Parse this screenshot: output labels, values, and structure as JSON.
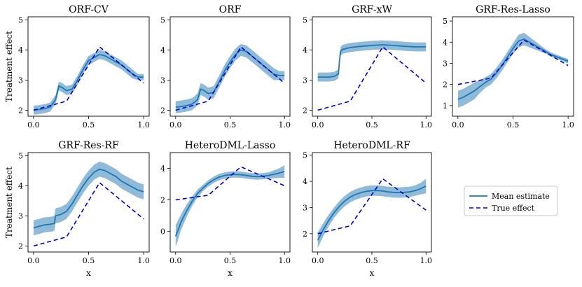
{
  "legend": {
    "mean_label": "Mean estimate",
    "true_label": "True effect",
    "placement": "right-middle"
  },
  "colors": {
    "mean": "#1f77b4",
    "band": "#1f77b4",
    "truth": "#0000cc"
  },
  "chart_data": [
    {
      "type": "line",
      "title": "ORF-CV",
      "xlabel": "",
      "ylabel": "Treatment effect",
      "xlim": [
        -0.05,
        1.05
      ],
      "ylim": [
        1.8,
        5.1
      ],
      "xticks": [
        0.0,
        0.5,
        1.0
      ],
      "yticks": [
        2,
        3,
        4,
        5
      ],
      "series": [
        {
          "name": "Mean estimate",
          "x": [
            0,
            0.05,
            0.1,
            0.15,
            0.2,
            0.23,
            0.26,
            0.3,
            0.35,
            0.4,
            0.45,
            0.5,
            0.55,
            0.6,
            0.65,
            0.7,
            0.75,
            0.8,
            0.85,
            0.9,
            0.95,
            1.0
          ],
          "y": [
            2.0,
            2.02,
            2.05,
            2.1,
            2.35,
            2.8,
            2.75,
            2.65,
            2.7,
            3.0,
            3.35,
            3.65,
            3.75,
            3.85,
            3.8,
            3.7,
            3.6,
            3.5,
            3.35,
            3.2,
            3.1,
            3.1
          ],
          "band": [
            0.15,
            0.15,
            0.15,
            0.15,
            0.15,
            0.15,
            0.15,
            0.15,
            0.15,
            0.15,
            0.15,
            0.15,
            0.15,
            0.15,
            0.15,
            0.15,
            0.15,
            0.15,
            0.15,
            0.15,
            0.1,
            0.1
          ]
        },
        {
          "name": "True effect",
          "x": [
            0,
            0.3,
            0.6,
            1.0
          ],
          "y": [
            2,
            2.3,
            4.1,
            2.9
          ]
        }
      ]
    },
    {
      "type": "line",
      "title": "ORF",
      "xlabel": "",
      "ylabel": "",
      "xlim": [
        -0.05,
        1.05
      ],
      "ylim": [
        1.8,
        5.1
      ],
      "xticks": [
        0.0,
        0.5,
        1.0
      ],
      "yticks": [
        2,
        3,
        4,
        5
      ],
      "series": [
        {
          "name": "Mean estimate",
          "x": [
            0,
            0.05,
            0.1,
            0.15,
            0.2,
            0.23,
            0.26,
            0.3,
            0.35,
            0.4,
            0.45,
            0.5,
            0.55,
            0.6,
            0.65,
            0.7,
            0.75,
            0.8,
            0.85,
            0.9,
            0.95,
            1.0
          ],
          "y": [
            2.1,
            2.12,
            2.15,
            2.2,
            2.35,
            2.7,
            2.65,
            2.55,
            2.6,
            2.95,
            3.3,
            3.6,
            3.85,
            4.0,
            3.95,
            3.8,
            3.65,
            3.5,
            3.35,
            3.2,
            3.15,
            3.15
          ],
          "band": [
            0.2,
            0.2,
            0.2,
            0.2,
            0.2,
            0.2,
            0.2,
            0.2,
            0.2,
            0.2,
            0.2,
            0.2,
            0.2,
            0.2,
            0.2,
            0.2,
            0.2,
            0.2,
            0.2,
            0.2,
            0.15,
            0.15
          ]
        },
        {
          "name": "True effect",
          "x": [
            0,
            0.3,
            0.6,
            1.0
          ],
          "y": [
            2,
            2.3,
            4.1,
            2.9
          ]
        }
      ]
    },
    {
      "type": "line",
      "title": "GRF-xW",
      "xlabel": "",
      "ylabel": "",
      "xlim": [
        -0.05,
        1.05
      ],
      "ylim": [
        1.8,
        5.1
      ],
      "xticks": [
        0.0,
        0.5,
        1.0
      ],
      "yticks": [
        2,
        3,
        4,
        5
      ],
      "series": [
        {
          "name": "Mean estimate",
          "x": [
            0,
            0.05,
            0.1,
            0.15,
            0.19,
            0.2,
            0.21,
            0.23,
            0.3,
            0.4,
            0.5,
            0.6,
            0.7,
            0.8,
            0.9,
            1.0
          ],
          "y": [
            3.1,
            3.1,
            3.1,
            3.12,
            3.2,
            3.6,
            3.95,
            4.02,
            4.08,
            4.12,
            4.15,
            4.17,
            4.15,
            4.12,
            4.1,
            4.1
          ],
          "band": [
            0.15,
            0.15,
            0.15,
            0.15,
            0.15,
            0.15,
            0.15,
            0.15,
            0.15,
            0.15,
            0.15,
            0.15,
            0.15,
            0.15,
            0.15,
            0.15
          ]
        },
        {
          "name": "True effect",
          "x": [
            0,
            0.3,
            0.6,
            1.0
          ],
          "y": [
            2,
            2.3,
            4.1,
            2.9
          ]
        }
      ]
    },
    {
      "type": "line",
      "title": "GRF-Res-Lasso",
      "xlabel": "",
      "ylabel": "",
      "xlim": [
        -0.05,
        1.05
      ],
      "ylim": [
        0.5,
        5.2
      ],
      "xticks": [
        0.0,
        0.5,
        1.0
      ],
      "yticks": [
        1,
        2,
        3,
        4,
        5
      ],
      "series": [
        {
          "name": "Mean estimate",
          "x": [
            0,
            0.05,
            0.1,
            0.15,
            0.2,
            0.25,
            0.3,
            0.35,
            0.4,
            0.45,
            0.5,
            0.55,
            0.6,
            0.65,
            0.7,
            0.75,
            0.8,
            0.85,
            0.9,
            0.95,
            1.0
          ],
          "y": [
            1.3,
            1.4,
            1.55,
            1.7,
            1.9,
            2.1,
            2.25,
            2.55,
            2.9,
            3.3,
            3.7,
            4.05,
            4.15,
            4.0,
            3.85,
            3.7,
            3.55,
            3.4,
            3.3,
            3.2,
            3.1
          ],
          "band": [
            0.4,
            0.4,
            0.4,
            0.4,
            0.3,
            0.25,
            0.25,
            0.25,
            0.25,
            0.25,
            0.25,
            0.3,
            0.3,
            0.25,
            0.2,
            0.15,
            0.1,
            0.1,
            0.1,
            0.1,
            0.1
          ]
        },
        {
          "name": "True effect",
          "x": [
            0,
            0.3,
            0.6,
            1.0
          ],
          "y": [
            2,
            2.3,
            4.1,
            2.9
          ]
        }
      ]
    },
    {
      "type": "line",
      "title": "GRF-Res-RF",
      "xlabel": "x",
      "ylabel": "Treatment effect",
      "xlim": [
        -0.05,
        1.05
      ],
      "ylim": [
        1.8,
        5.1
      ],
      "xticks": [
        0.0,
        0.5,
        1.0
      ],
      "yticks": [
        2,
        3,
        4,
        5
      ],
      "series": [
        {
          "name": "Mean estimate",
          "x": [
            0,
            0.05,
            0.1,
            0.15,
            0.19,
            0.2,
            0.25,
            0.3,
            0.35,
            0.4,
            0.45,
            0.5,
            0.55,
            0.6,
            0.65,
            0.7,
            0.75,
            0.8,
            0.85,
            0.9,
            0.95,
            1.0
          ],
          "y": [
            2.6,
            2.65,
            2.7,
            2.72,
            2.75,
            3.0,
            3.05,
            3.15,
            3.4,
            3.7,
            4.0,
            4.25,
            4.45,
            4.55,
            4.5,
            4.4,
            4.3,
            4.15,
            4.05,
            3.95,
            3.85,
            3.8
          ],
          "band": [
            0.25,
            0.25,
            0.25,
            0.25,
            0.25,
            0.25,
            0.25,
            0.25,
            0.25,
            0.25,
            0.25,
            0.25,
            0.25,
            0.25,
            0.25,
            0.25,
            0.25,
            0.25,
            0.25,
            0.25,
            0.25,
            0.25
          ]
        },
        {
          "name": "True effect",
          "x": [
            0,
            0.3,
            0.6,
            1.0
          ],
          "y": [
            2,
            2.3,
            4.1,
            2.9
          ]
        }
      ]
    },
    {
      "type": "line",
      "title": "HeteroDML-Lasso",
      "xlabel": "x",
      "ylabel": "",
      "xlim": [
        -0.05,
        1.05
      ],
      "ylim": [
        -1.3,
        5.0
      ],
      "xticks": [
        0.0,
        0.5,
        1.0
      ],
      "yticks": [
        0,
        2,
        4
      ],
      "series": [
        {
          "name": "Mean estimate",
          "x": [
            0,
            0.05,
            0.1,
            0.15,
            0.2,
            0.25,
            0.3,
            0.35,
            0.4,
            0.45,
            0.5,
            0.55,
            0.6,
            0.65,
            0.7,
            0.75,
            0.8,
            0.85,
            0.9,
            0.95,
            1.0
          ],
          "y": [
            -0.3,
            0.6,
            1.3,
            1.9,
            2.4,
            2.75,
            3.05,
            3.28,
            3.45,
            3.55,
            3.6,
            3.62,
            3.6,
            3.55,
            3.5,
            3.48,
            3.5,
            3.55,
            3.62,
            3.7,
            3.8
          ],
          "band": [
            0.7,
            0.5,
            0.4,
            0.3,
            0.25,
            0.2,
            0.2,
            0.2,
            0.2,
            0.2,
            0.2,
            0.2,
            0.2,
            0.2,
            0.2,
            0.2,
            0.2,
            0.2,
            0.25,
            0.3,
            0.4
          ]
        },
        {
          "name": "True effect",
          "x": [
            0,
            0.3,
            0.6,
            1.0
          ],
          "y": [
            2,
            2.3,
            4.1,
            2.9
          ]
        }
      ]
    },
    {
      "type": "line",
      "title": "HeteroDML-RF",
      "xlabel": "x",
      "ylabel": "",
      "xlim": [
        -0.05,
        1.05
      ],
      "ylim": [
        1.3,
        5.1
      ],
      "xticks": [
        0.0,
        0.5,
        1.0
      ],
      "yticks": [
        2,
        3,
        4,
        5
      ],
      "series": [
        {
          "name": "Mean estimate",
          "x": [
            0,
            0.05,
            0.1,
            0.15,
            0.2,
            0.25,
            0.3,
            0.35,
            0.4,
            0.45,
            0.5,
            0.55,
            0.6,
            0.65,
            0.7,
            0.75,
            0.8,
            0.85,
            0.9,
            0.95,
            1.0
          ],
          "y": [
            1.75,
            2.15,
            2.5,
            2.8,
            3.05,
            3.25,
            3.4,
            3.5,
            3.57,
            3.62,
            3.65,
            3.65,
            3.63,
            3.6,
            3.58,
            3.57,
            3.58,
            3.6,
            3.65,
            3.72,
            3.82
          ],
          "band": [
            0.3,
            0.25,
            0.22,
            0.2,
            0.2,
            0.2,
            0.2,
            0.2,
            0.2,
            0.2,
            0.2,
            0.2,
            0.2,
            0.2,
            0.2,
            0.2,
            0.2,
            0.2,
            0.2,
            0.22,
            0.28
          ]
        },
        {
          "name": "True effect",
          "x": [
            0,
            0.3,
            0.6,
            1.0
          ],
          "y": [
            2,
            2.3,
            4.1,
            2.9
          ]
        }
      ]
    }
  ]
}
